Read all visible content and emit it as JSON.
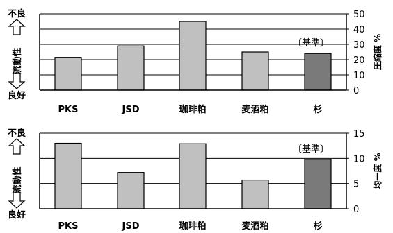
{
  "labels": {
    "bad": "不良",
    "good": "良好",
    "flowability": "流動性"
  },
  "chart_data": [
    {
      "type": "bar",
      "categories": [
        "PKS",
        "JSD",
        "珈琲粕",
        "麦酒粕",
        "杉"
      ],
      "values": [
        21.5,
        29,
        45,
        25,
        24
      ],
      "ylabel": "圧縮度 %",
      "ylim": [
        0,
        50
      ],
      "yticks": [
        "0",
        "10",
        "20",
        "30",
        "40",
        "50"
      ],
      "reference_category": "杉",
      "reference_label": "〔基準〕",
      "colors": {
        "bar": "#c0c0c0",
        "reference_bar": "#7a7a7a"
      },
      "grid": true
    },
    {
      "type": "bar",
      "categories": [
        "PKS",
        "JSD",
        "珈琲粕",
        "麦酒粕",
        "杉"
      ],
      "values": [
        13,
        7.2,
        12.9,
        5.7,
        9.8
      ],
      "ylabel": "均一度 %",
      "ylim": [
        0,
        15
      ],
      "yticks": [
        "0",
        "5",
        "10",
        "15"
      ],
      "reference_category": "杉",
      "reference_label": "〔基準〕",
      "colors": {
        "bar": "#c0c0c0",
        "reference_bar": "#7a7a7a"
      },
      "grid": true
    }
  ]
}
